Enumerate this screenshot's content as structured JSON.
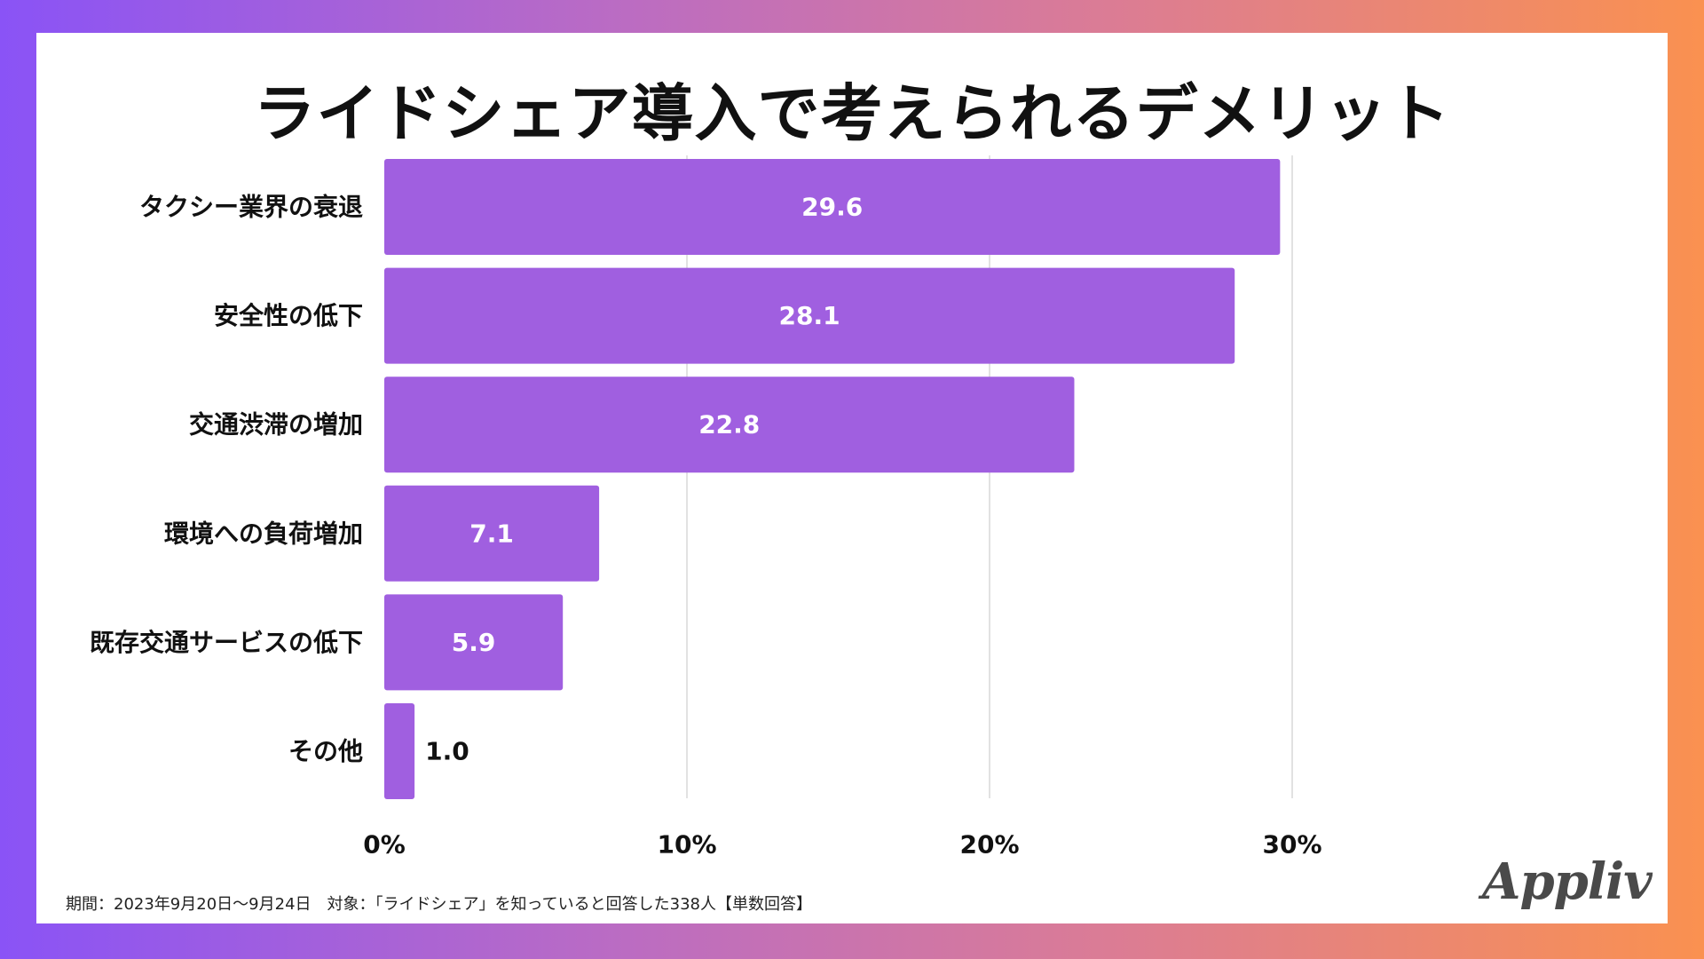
{
  "chart_data": {
    "type": "bar",
    "orientation": "horizontal",
    "title": "ライドシェア導入で考えられるデメリット",
    "categories": [
      "タクシー業界の衰退",
      "安全性の低下",
      "交通渋滞の増加",
      "環境への負荷増加",
      "既存交通サービスの低下",
      "その他"
    ],
    "values": [
      29.6,
      28.1,
      22.8,
      7.1,
      5.9,
      1.0
    ],
    "value_labels": [
      "29.6",
      "28.1",
      "22.8",
      "7.1",
      "5.9",
      "1.0"
    ],
    "xlim": [
      0,
      30
    ],
    "xticks": [
      0,
      10,
      20,
      30
    ],
    "xtick_labels": [
      "0%",
      "10%",
      "20%",
      "30%"
    ],
    "xlabel": "",
    "ylabel": "",
    "grid": true,
    "legend": "none"
  },
  "colors": {
    "bar": "#A05FE0",
    "grid": "#D9D9D9",
    "label_inside": "#FFFFFF",
    "label_outside": "#111111"
  },
  "footnote": "期間：2023年9月20日〜9月24日　対象：「ライドシェア」を知っていると回答した338人【単数回答】",
  "logo_text": "Appliv"
}
